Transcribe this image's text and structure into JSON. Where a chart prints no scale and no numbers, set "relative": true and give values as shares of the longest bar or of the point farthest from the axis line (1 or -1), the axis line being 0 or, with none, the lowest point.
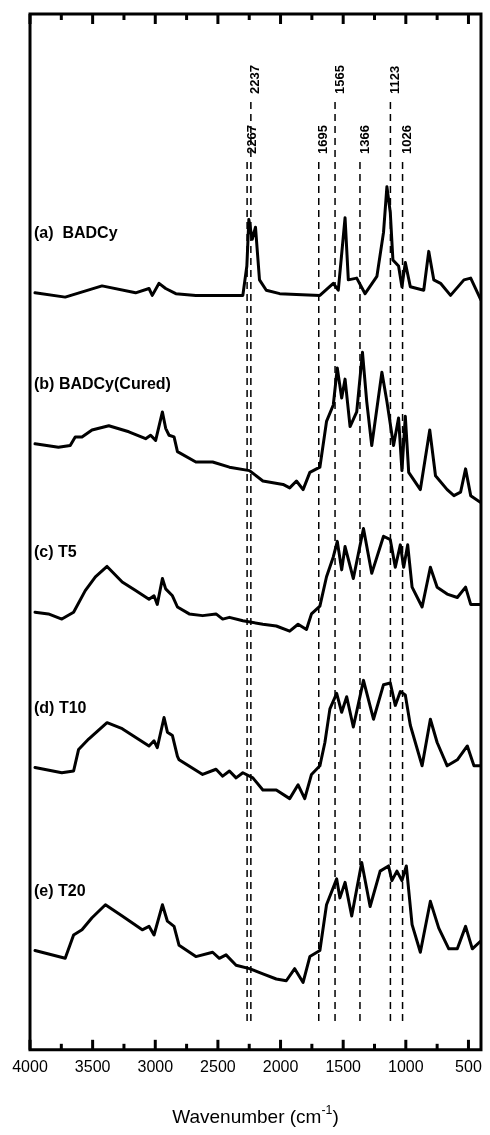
{
  "chart_data": {
    "type": "line",
    "xlabel": "Wavenumber (cm$^{-1}$)",
    "relative": true,
    "legend": false,
    "grid": false,
    "marker": "none",
    "line_style": "solid",
    "xlim": [
      4000,
      400
    ],
    "xticks": [
      4000,
      {
        "value": 3750,
        "label": null
      },
      3500,
      {
        "value": 3250,
        "label": null
      },
      3000,
      {
        "value": 2750,
        "label": null
      },
      2500,
      {
        "value": 2250,
        "label": null
      },
      2000,
      {
        "value": 1750,
        "label": null
      },
      1500,
      {
        "value": 1250,
        "label": null
      },
      1000,
      {
        "value": 750,
        "label": null
      },
      500
    ],
    "ref_lines": [
      {
        "axis": "x",
        "value": 2267,
        "label": "2267",
        "color": "#000000",
        "line_style": "dashed"
      },
      {
        "axis": "x",
        "value": 2237,
        "label": "2237",
        "color": "#000000",
        "line_style": "dashed"
      },
      {
        "axis": "x",
        "value": 1695,
        "label": "1695",
        "color": "#000000",
        "line_style": "dashed"
      },
      {
        "axis": "x",
        "value": 1565,
        "label": "1565",
        "color": "#000000",
        "line_style": "dashed"
      },
      {
        "axis": "x",
        "value": 1366,
        "label": "1366",
        "color": "#000000",
        "line_style": "dashed"
      },
      {
        "axis": "x",
        "value": 1123,
        "label": "1123",
        "color": "#000000",
        "line_style": "dashed"
      },
      {
        "axis": "x",
        "value": 1026,
        "label": "1026",
        "color": "#000000",
        "line_style": "dashed"
      }
    ],
    "series": [
      {
        "name": "(a)  BADCy",
        "color": "#000000",
        "x": [
          3960,
          3719,
          3425,
          3157,
          3050,
          3024,
          2970,
          2917,
          2836,
          2676,
          2301,
          2269,
          2253,
          2226,
          2200,
          2168,
          2114,
          2007,
          1873,
          1686,
          1579,
          1539,
          1485,
          1459,
          1392,
          1325,
          1231,
          1178,
          1151,
          1124,
          1103,
          1058,
          1031,
          1004,
          964,
          857,
          817,
          777,
          723,
          643,
          536,
          482,
          402
        ],
        "values": [
          0.877,
          0.872,
          0.885,
          0.877,
          0.882,
          0.874,
          0.888,
          0.882,
          0.876,
          0.874,
          0.874,
          0.908,
          0.962,
          0.939,
          0.953,
          0.892,
          0.88,
          0.876,
          0.875,
          0.874,
          0.888,
          0.88,
          0.964,
          0.892,
          0.894,
          0.876,
          0.896,
          0.947,
          1.0,
          0.97,
          0.915,
          0.908,
          0.884,
          0.912,
          0.884,
          0.88,
          0.925,
          0.892,
          0.888,
          0.874,
          0.892,
          0.894,
          0.869
        ]
      },
      {
        "name": "(b) BADCy(Cured)",
        "color": "#000000",
        "x": [
          3960,
          3773,
          3679,
          3639,
          3585,
          3505,
          3371,
          3211,
          3077,
          3037,
          2997,
          2943,
          2917,
          2890,
          2850,
          2823,
          2676,
          2542,
          2408,
          2248,
          2141,
          1980,
          1927,
          1873,
          1820,
          1766,
          1686,
          1633,
          1579,
          1547,
          1512,
          1485,
          1445,
          1392,
          1346,
          1312,
          1272,
          1191,
          1151,
          1098,
          1058,
          1031,
          1004,
          977,
          884,
          809,
          763,
          670,
          616,
          563,
          523,
          482,
          402
        ],
        "values": [
          0.702,
          0.698,
          0.7,
          0.71,
          0.71,
          0.718,
          0.723,
          0.716,
          0.708,
          0.712,
          0.706,
          0.739,
          0.72,
          0.712,
          0.71,
          0.693,
          0.681,
          0.681,
          0.675,
          0.671,
          0.659,
          0.655,
          0.651,
          0.659,
          0.649,
          0.669,
          0.675,
          0.728,
          0.747,
          0.79,
          0.755,
          0.777,
          0.722,
          0.739,
          0.808,
          0.751,
          0.7,
          0.785,
          0.751,
          0.7,
          0.732,
          0.671,
          0.734,
          0.669,
          0.649,
          0.718,
          0.665,
          0.649,
          0.642,
          0.646,
          0.673,
          0.642,
          0.634
        ]
      },
      {
        "name": "(c) T5",
        "color": "#000000",
        "x": [
          3960,
          3853,
          3746,
          3652,
          3559,
          3478,
          3385,
          3264,
          3157,
          3050,
          3010,
          2984,
          2943,
          2917,
          2863,
          2823,
          2729,
          2622,
          2515,
          2462,
          2408,
          2301,
          2141,
          2034,
          1927,
          1860,
          1793,
          1753,
          1686,
          1633,
          1579,
          1547,
          1512,
          1485,
          1419,
          1338,
          1272,
          1178,
          1124,
          1084,
          1044,
          1017,
          985,
          950,
          870,
          804,
          750,
          670,
          589,
          523,
          482,
          402
        ],
        "values": [
          0.507,
          0.505,
          0.499,
          0.507,
          0.532,
          0.548,
          0.56,
          0.542,
          0.532,
          0.522,
          0.526,
          0.516,
          0.546,
          0.534,
          0.526,
          0.513,
          0.505,
          0.503,
          0.505,
          0.499,
          0.501,
          0.497,
          0.493,
          0.491,
          0.485,
          0.493,
          0.487,
          0.505,
          0.514,
          0.548,
          0.571,
          0.589,
          0.556,
          0.583,
          0.546,
          0.604,
          0.552,
          0.595,
          0.591,
          0.559,
          0.585,
          0.559,
          0.585,
          0.536,
          0.513,
          0.559,
          0.536,
          0.528,
          0.524,
          0.536,
          0.516,
          0.516
        ]
      },
      {
        "name": "(d) T10",
        "color": "#000000",
        "x": [
          3960,
          3746,
          3652,
          3612,
          3532,
          3385,
          3264,
          3050,
          3010,
          2984,
          2930,
          2903,
          2863,
          2823,
          2810,
          2622,
          2515,
          2462,
          2408,
          2355,
          2301,
          2221,
          2141,
          2034,
          1927,
          1860,
          1807,
          1753,
          1686,
          1646,
          1606,
          1552,
          1512,
          1472,
          1419,
          1338,
          1258,
          1178,
          1124,
          1084,
          1044,
          1004,
          964,
          870,
          804,
          750,
          670,
          589,
          509,
          456,
          402
        ],
        "values": [
          0.327,
          0.321,
          0.323,
          0.348,
          0.36,
          0.379,
          0.372,
          0.352,
          0.358,
          0.35,
          0.385,
          0.368,
          0.364,
          0.34,
          0.336,
          0.319,
          0.325,
          0.317,
          0.323,
          0.315,
          0.321,
          0.315,
          0.301,
          0.301,
          0.291,
          0.307,
          0.291,
          0.319,
          0.329,
          0.356,
          0.395,
          0.413,
          0.391,
          0.409,
          0.374,
          0.428,
          0.383,
          0.423,
          0.425,
          0.399,
          0.415,
          0.411,
          0.376,
          0.329,
          0.383,
          0.356,
          0.329,
          0.336,
          0.352,
          0.329,
          0.329
        ]
      },
      {
        "name": "(e) T20",
        "color": "#000000",
        "x": [
          3960,
          3719,
          3652,
          3585,
          3505,
          3398,
          3264,
          3104,
          3050,
          3010,
          2943,
          2903,
          2850,
          2810,
          2676,
          2542,
          2489,
          2435,
          2355,
          2248,
          2141,
          2034,
          1954,
          1887,
          1820,
          1766,
          1686,
          1633,
          1552,
          1526,
          1485,
          1432,
          1352,
          1285,
          1205,
          1138,
          1111,
          1071,
          1031,
          996,
          950,
          884,
          804,
          737,
          657,
          589,
          523,
          469,
          402
        ],
        "values": [
          0.115,
          0.106,
          0.133,
          0.139,
          0.153,
          0.168,
          0.155,
          0.139,
          0.143,
          0.133,
          0.168,
          0.149,
          0.143,
          0.121,
          0.108,
          0.113,
          0.106,
          0.11,
          0.098,
          0.094,
          0.088,
          0.082,
          0.08,
          0.094,
          0.078,
          0.108,
          0.115,
          0.168,
          0.198,
          0.176,
          0.194,
          0.155,
          0.217,
          0.166,
          0.207,
          0.213,
          0.196,
          0.207,
          0.196,
          0.213,
          0.145,
          0.113,
          0.172,
          0.141,
          0.117,
          0.117,
          0.143,
          0.117,
          0.126
        ]
      }
    ]
  }
}
